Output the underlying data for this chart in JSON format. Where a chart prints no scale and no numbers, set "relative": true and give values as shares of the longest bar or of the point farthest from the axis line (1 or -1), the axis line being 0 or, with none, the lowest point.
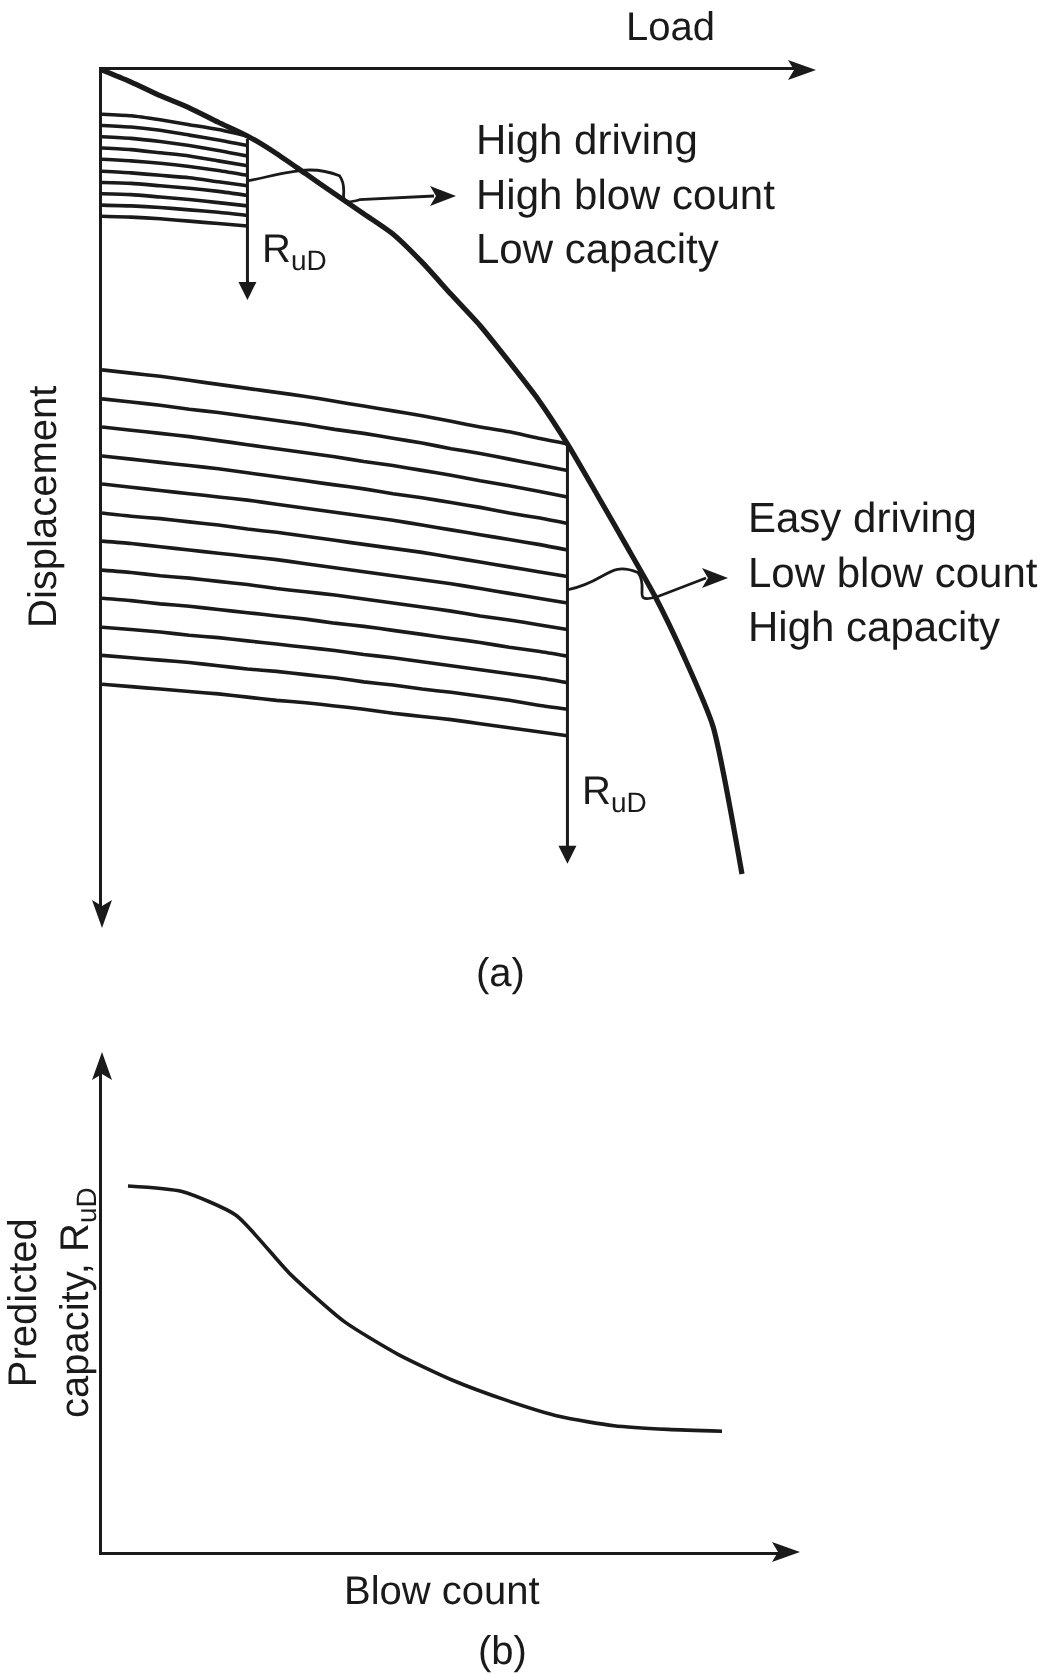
{
  "chart_data": [
    {
      "type": "line",
      "title": "(a)",
      "xlabel": "Load",
      "ylabel": "Displacement",
      "relative": true,
      "color": "#1a1a1a",
      "categories": [
        null,
        null,
        null,
        null,
        null,
        null,
        null,
        null,
        null,
        null,
        null,
        null,
        null,
        null,
        null,
        null,
        null,
        null,
        null,
        null,
        null,
        null,
        null
      ],
      "annotations": [
        "R$_{uD}$",
        "R$_{uD}$",
        "High driving\nHigh blow count\nLow capacity",
        "Easy driving\nLow blow count\nHigh capacity"
      ],
      "series": [
        {
          "values": [
            0,
            -0.015,
            -0.032,
            -0.047,
            -0.065,
            -0.082,
            -0.104,
            -0.129,
            -0.154,
            -0.179,
            -0.204,
            -0.239,
            -0.279,
            -0.318,
            -0.363,
            -0.41,
            -0.465,
            -0.527,
            -0.59,
            -0.654,
            -0.729,
            -0.816,
            -1
          ]
        },
        {
          "values": [
            -0.055,
            -0.057,
            -0.062,
            -0.068,
            -0.074,
            -0.082,
            null,
            null,
            null,
            null,
            null,
            null,
            null,
            null,
            null,
            null,
            null,
            null,
            null,
            null,
            null,
            null,
            null
          ]
        },
        {
          "values": [
            -0.069,
            -0.071,
            -0.075,
            -0.081,
            -0.087,
            -0.094,
            null,
            null,
            null,
            null,
            null,
            null,
            null,
            null,
            null,
            null,
            null,
            null,
            null,
            null,
            null,
            null,
            null
          ]
        },
        {
          "values": [
            -0.083,
            -0.085,
            -0.089,
            -0.094,
            -0.1,
            -0.107,
            null,
            null,
            null,
            null,
            null,
            null,
            null,
            null,
            null,
            null,
            null,
            null,
            null,
            null,
            null,
            null,
            null
          ]
        },
        {
          "values": [
            -0.097,
            -0.099,
            -0.103,
            -0.107,
            -0.113,
            -0.119,
            null,
            null,
            null,
            null,
            null,
            null,
            null,
            null,
            null,
            null,
            null,
            null,
            null,
            null,
            null,
            null,
            null
          ]
        },
        {
          "values": [
            -0.111,
            -0.113,
            -0.116,
            -0.12,
            -0.125,
            -0.131,
            null,
            null,
            null,
            null,
            null,
            null,
            null,
            null,
            null,
            null,
            null,
            null,
            null,
            null,
            null,
            null,
            null
          ]
        },
        {
          "values": [
            -0.126,
            -0.128,
            -0.131,
            -0.134,
            -0.139,
            -0.144,
            null,
            null,
            null,
            null,
            null,
            null,
            null,
            null,
            null,
            null,
            null,
            null,
            null,
            null,
            null,
            null,
            null
          ]
        },
        {
          "values": [
            -0.14,
            -0.141,
            -0.144,
            -0.147,
            -0.151,
            -0.156,
            null,
            null,
            null,
            null,
            null,
            null,
            null,
            null,
            null,
            null,
            null,
            null,
            null,
            null,
            null,
            null,
            null
          ]
        },
        {
          "values": [
            -0.154,
            -0.155,
            -0.158,
            -0.161,
            -0.165,
            -0.169,
            null,
            null,
            null,
            null,
            null,
            null,
            null,
            null,
            null,
            null,
            null,
            null,
            null,
            null,
            null,
            null,
            null
          ]
        },
        {
          "values": [
            -0.168,
            -0.169,
            -0.171,
            -0.174,
            -0.177,
            -0.181,
            null,
            null,
            null,
            null,
            null,
            null,
            null,
            null,
            null,
            null,
            null,
            null,
            null,
            null,
            null,
            null,
            null
          ]
        },
        {
          "values": [
            -0.182,
            -0.183,
            -0.185,
            -0.188,
            -0.191,
            -0.194,
            null,
            null,
            null,
            null,
            null,
            null,
            null,
            null,
            null,
            null,
            null,
            null,
            null,
            null,
            null,
            null,
            null
          ]
        },
        {
          "values": [
            -0.373,
            -0.377,
            -0.381,
            -0.386,
            -0.391,
            -0.396,
            -0.401,
            -0.406,
            -0.412,
            -0.418,
            -0.424,
            -0.43,
            -0.437,
            -0.444,
            -0.45,
            -0.458,
            -0.465,
            null,
            null,
            null,
            null,
            null,
            null
          ]
        },
        {
          "values": [
            -0.409,
            -0.413,
            -0.417,
            -0.422,
            -0.426,
            -0.431,
            -0.436,
            -0.441,
            -0.447,
            -0.452,
            -0.458,
            -0.464,
            -0.471,
            -0.477,
            -0.484,
            -0.491,
            -0.498,
            null,
            null,
            null,
            null,
            null,
            null
          ]
        },
        {
          "values": [
            -0.444,
            -0.448,
            -0.452,
            -0.456,
            -0.461,
            -0.466,
            -0.471,
            -0.476,
            -0.481,
            -0.487,
            -0.492,
            -0.498,
            -0.504,
            -0.511,
            -0.517,
            -0.524,
            -0.531,
            null,
            null,
            null,
            null,
            null,
            null
          ]
        },
        {
          "values": [
            -0.48,
            -0.484,
            -0.488,
            -0.492,
            -0.496,
            -0.501,
            -0.506,
            -0.511,
            -0.516,
            -0.521,
            -0.527,
            -0.532,
            -0.538,
            -0.544,
            -0.551,
            -0.557,
            -0.564,
            null,
            null,
            null,
            null,
            null,
            null
          ]
        },
        {
          "values": [
            -0.515,
            -0.519,
            -0.523,
            -0.527,
            -0.531,
            -0.535,
            -0.54,
            -0.545,
            -0.55,
            -0.555,
            -0.56,
            -0.566,
            -0.572,
            -0.578,
            -0.584,
            -0.59,
            -0.597,
            null,
            null,
            null,
            null,
            null,
            null
          ]
        },
        {
          "values": [
            -0.551,
            -0.555,
            -0.558,
            -0.562,
            -0.566,
            -0.571,
            -0.575,
            -0.58,
            -0.585,
            -0.59,
            -0.595,
            -0.6,
            -0.606,
            -0.612,
            -0.618,
            -0.624,
            -0.63,
            null,
            null,
            null,
            null,
            null,
            null
          ]
        },
        {
          "values": [
            -0.586,
            -0.589,
            -0.593,
            -0.597,
            -0.601,
            -0.605,
            -0.609,
            -0.614,
            -0.619,
            -0.624,
            -0.629,
            -0.634,
            -0.639,
            -0.645,
            -0.651,
            -0.657,
            -0.663,
            null,
            null,
            null,
            null,
            null,
            null
          ]
        },
        {
          "values": [
            -0.622,
            -0.625,
            -0.629,
            -0.632,
            -0.636,
            -0.64,
            -0.645,
            -0.649,
            -0.653,
            -0.658,
            -0.663,
            -0.668,
            -0.673,
            -0.679,
            -0.684,
            -0.69,
            -0.696,
            null,
            null,
            null,
            null,
            null,
            null
          ]
        },
        {
          "values": [
            -0.657,
            -0.66,
            -0.664,
            -0.667,
            -0.671,
            -0.675,
            -0.679,
            -0.683,
            -0.688,
            -0.692,
            -0.697,
            -0.702,
            -0.707,
            -0.712,
            -0.718,
            -0.723,
            -0.729,
            null,
            null,
            null,
            null,
            null,
            null
          ]
        },
        {
          "values": [
            -0.693,
            -0.696,
            -0.699,
            -0.703,
            -0.706,
            -0.71,
            -0.714,
            -0.718,
            -0.722,
            -0.727,
            -0.731,
            -0.736,
            -0.741,
            -0.746,
            -0.751,
            -0.756,
            -0.762,
            null,
            null,
            null,
            null,
            null,
            null
          ]
        },
        {
          "values": [
            -0.728,
            -0.731,
            -0.734,
            -0.737,
            -0.741,
            -0.745,
            -0.748,
            -0.752,
            -0.756,
            -0.761,
            -0.765,
            -0.77,
            -0.774,
            -0.779,
            -0.784,
            -0.79,
            -0.795,
            null,
            null,
            null,
            null,
            null,
            null
          ]
        },
        {
          "values": [
            -0.764,
            -0.767,
            -0.77,
            -0.773,
            -0.776,
            -0.78,
            -0.784,
            -0.787,
            -0.791,
            -0.795,
            -0.8,
            -0.804,
            -0.808,
            -0.813,
            -0.818,
            -0.823,
            -0.828,
            null,
            null,
            null,
            null,
            null,
            null
          ]
        }
      ]
    },
    {
      "type": "line",
      "title": "(b)",
      "xlabel": "Blow count",
      "ylabel": "Predicted\ncapacity, R$_{uD}$",
      "relative": true,
      "color": "#1a1a1a",
      "categories": [
        null,
        null,
        null,
        null,
        null,
        null,
        null,
        null,
        null,
        null,
        null,
        null
      ],
      "series": [
        {
          "values": [
            1,
            0.985,
            0.92,
            0.76,
            0.63,
            0.54,
            0.47,
            0.415,
            0.37,
            0.345,
            0.335,
            0.33
          ]
        }
      ]
    }
  ]
}
